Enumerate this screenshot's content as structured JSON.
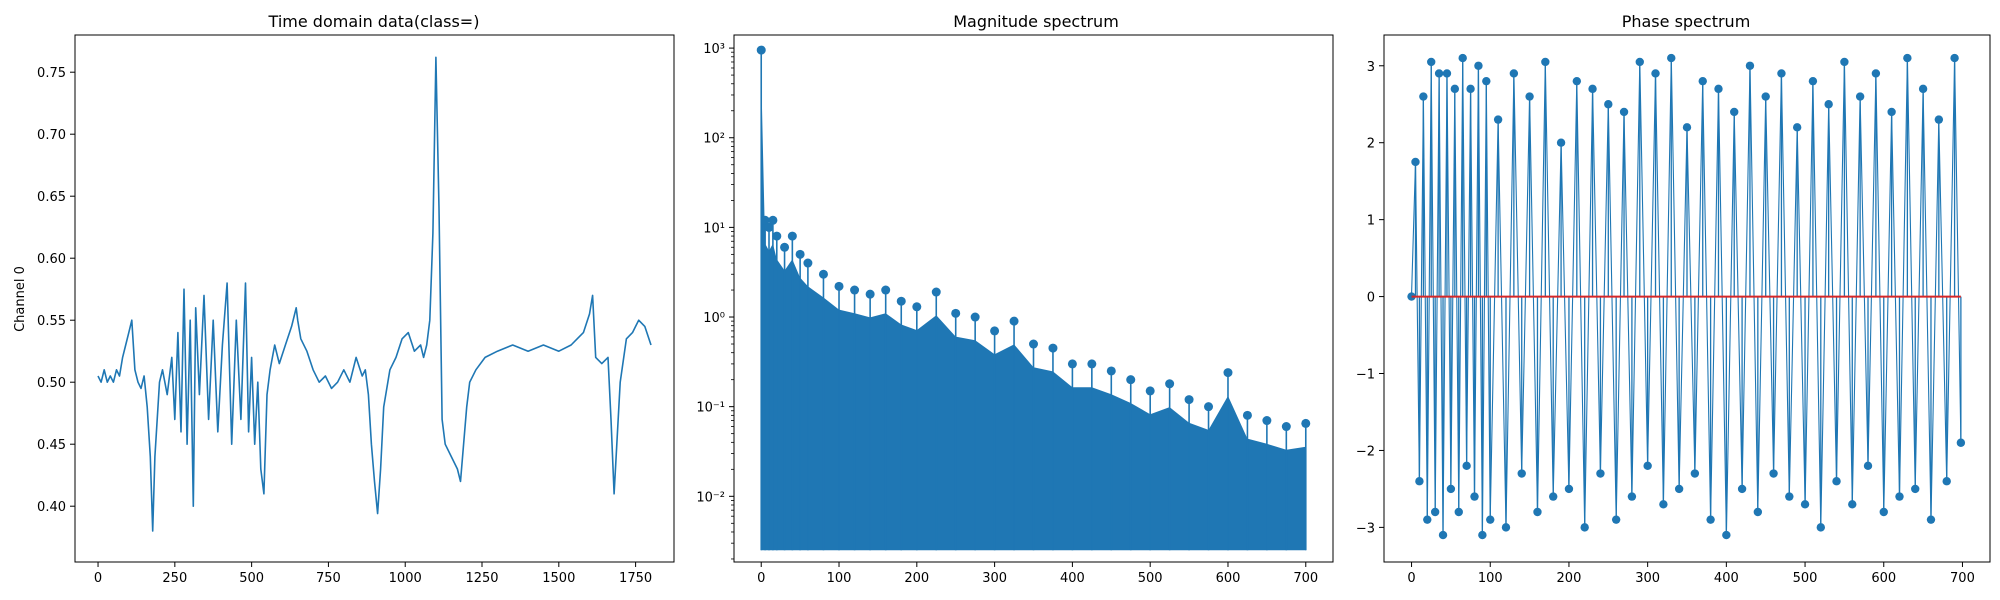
{
  "chart_data": [
    {
      "type": "line",
      "title": "Time domain data(class=)",
      "xlabel": "",
      "ylabel": "Channel 0",
      "xlim": [
        -75,
        1875
      ],
      "ylim": [
        0.355,
        0.78
      ],
      "x_ticks": [
        0,
        250,
        500,
        750,
        1000,
        1250,
        1500,
        1750
      ],
      "x_tick_labels": [
        "0",
        "250",
        "500",
        "750",
        "1000",
        "1250",
        "1500",
        "1750"
      ],
      "y_ticks": [
        0.4,
        0.45,
        0.5,
        0.55,
        0.6,
        0.65,
        0.7,
        0.75
      ],
      "y_tick_labels": [
        "0.40",
        "0.45",
        "0.50",
        "0.55",
        "0.60",
        "0.65",
        "0.70",
        "0.75"
      ],
      "grid": false,
      "color": "#1f77b4",
      "series": [
        {
          "x": [
            0,
            10,
            20,
            30,
            40,
            50,
            60,
            70,
            80,
            90,
            100,
            110,
            120,
            130,
            140,
            150,
            160,
            170,
            178,
            185,
            200,
            210,
            225,
            240,
            250,
            260,
            270,
            280,
            290,
            300,
            310,
            318,
            330,
            345,
            360,
            375,
            390,
            405,
            420,
            435,
            450,
            465,
            480,
            490,
            500,
            510,
            520,
            530,
            540,
            550,
            560,
            575,
            590,
            610,
            630,
            645,
            650,
            660,
            680,
            700,
            720,
            740,
            760,
            780,
            800,
            820,
            840,
            860,
            870,
            880,
            890,
            900,
            910,
            920,
            930,
            950,
            970,
            990,
            1010,
            1030,
            1050,
            1060,
            1070,
            1080,
            1090,
            1100,
            1110,
            1120,
            1130,
            1150,
            1170,
            1180,
            1190,
            1200,
            1210,
            1230,
            1260,
            1300,
            1350,
            1400,
            1450,
            1500,
            1540,
            1560,
            1580,
            1600,
            1610,
            1620,
            1640,
            1660,
            1670,
            1680,
            1700,
            1720,
            1740,
            1760,
            1780,
            1800
          ],
          "y": [
            0.505,
            0.5,
            0.51,
            0.5,
            0.505,
            0.5,
            0.51,
            0.505,
            0.52,
            0.53,
            0.54,
            0.55,
            0.51,
            0.5,
            0.495,
            0.505,
            0.48,
            0.44,
            0.38,
            0.44,
            0.5,
            0.51,
            0.49,
            0.52,
            0.47,
            0.54,
            0.46,
            0.575,
            0.45,
            0.55,
            0.4,
            0.56,
            0.49,
            0.57,
            0.47,
            0.55,
            0.46,
            0.53,
            0.58,
            0.45,
            0.55,
            0.47,
            0.58,
            0.46,
            0.52,
            0.45,
            0.5,
            0.43,
            0.41,
            0.49,
            0.51,
            0.53,
            0.515,
            0.53,
            0.545,
            0.56,
            0.55,
            0.535,
            0.525,
            0.51,
            0.5,
            0.505,
            0.495,
            0.5,
            0.51,
            0.5,
            0.52,
            0.505,
            0.51,
            0.49,
            0.45,
            0.42,
            0.394,
            0.43,
            0.48,
            0.51,
            0.52,
            0.535,
            0.54,
            0.525,
            0.53,
            0.52,
            0.53,
            0.55,
            0.62,
            0.762,
            0.64,
            0.47,
            0.45,
            0.44,
            0.43,
            0.42,
            0.45,
            0.48,
            0.5,
            0.51,
            0.52,
            0.525,
            0.53,
            0.525,
            0.53,
            0.525,
            0.53,
            0.535,
            0.54,
            0.555,
            0.57,
            0.52,
            0.515,
            0.52,
            0.47,
            0.41,
            0.5,
            0.535,
            0.54,
            0.55,
            0.545,
            0.53
          ]
        }
      ]
    },
    {
      "type": "stem",
      "title": "Magnitude spectrum",
      "xlabel": "",
      "ylabel": "",
      "yscale": "log",
      "xlim": [
        -35,
        735
      ],
      "ylim": [
        0.00185,
        1400
      ],
      "x_ticks": [
        0,
        100,
        200,
        300,
        400,
        500,
        600,
        700
      ],
      "x_tick_labels": [
        "0",
        "100",
        "200",
        "300",
        "400",
        "500",
        "600",
        "700"
      ],
      "y_ticks": [
        0.01,
        0.1,
        1,
        10,
        100,
        1000
      ],
      "y_tick_labels": [
        "10⁻²",
        "10⁻¹",
        "10⁰",
        "10¹",
        "10²",
        "10³"
      ],
      "grid": false,
      "color": "#1f77b4",
      "series": [
        {
          "x": [
            0,
            5,
            10,
            15,
            20,
            30,
            40,
            50,
            60,
            80,
            100,
            120,
            140,
            160,
            180,
            200,
            225,
            250,
            275,
            300,
            325,
            350,
            375,
            400,
            425,
            450,
            475,
            500,
            525,
            550,
            575,
            600,
            625,
            650,
            675,
            700
          ],
          "y": [
            950,
            12,
            10,
            12,
            8,
            6,
            8,
            5,
            4,
            3,
            2.2,
            2.0,
            1.8,
            2.0,
            1.5,
            1.3,
            1.9,
            1.1,
            1.0,
            0.7,
            0.9,
            0.5,
            0.45,
            0.3,
            0.3,
            0.25,
            0.2,
            0.15,
            0.18,
            0.12,
            0.1,
            0.24,
            0.08,
            0.07,
            0.06,
            0.065
          ]
        }
      ],
      "min_envelope": [
        0.0025,
        0.0025
      ]
    },
    {
      "type": "stem",
      "title": "Phase spectrum",
      "xlabel": "",
      "ylabel": "",
      "xlim": [
        -35,
        735
      ],
      "ylim": [
        -3.45,
        3.4
      ],
      "x_ticks": [
        0,
        100,
        200,
        300,
        400,
        500,
        600,
        700
      ],
      "x_tick_labels": [
        "0",
        "100",
        "200",
        "300",
        "400",
        "500",
        "600",
        "700"
      ],
      "y_ticks": [
        -3,
        -2,
        -1,
        0,
        1,
        2,
        3
      ],
      "y_tick_labels": [
        "−3",
        "−2",
        "−1",
        "0",
        "1",
        "2",
        "3"
      ],
      "grid": false,
      "color": "#1f77b4",
      "baseline_color": "#d62728",
      "series": [
        {
          "x": [
            0,
            5,
            10,
            15,
            20,
            25,
            30,
            35,
            40,
            45,
            50,
            55,
            60,
            65,
            70,
            75,
            80,
            85,
            90,
            95,
            100,
            110,
            120,
            130,
            140,
            150,
            160,
            170,
            180,
            190,
            200,
            210,
            220,
            230,
            240,
            250,
            260,
            270,
            280,
            290,
            300,
            310,
            320,
            330,
            340,
            350,
            360,
            370,
            380,
            390,
            400,
            410,
            420,
            430,
            440,
            450,
            460,
            470,
            480,
            490,
            500,
            510,
            520,
            530,
            540,
            550,
            560,
            570,
            580,
            590,
            600,
            610,
            620,
            630,
            640,
            650,
            660,
            670,
            680,
            690,
            698
          ],
          "y": [
            0.0,
            1.75,
            -2.4,
            2.6,
            -2.9,
            3.05,
            -2.8,
            2.9,
            -3.1,
            2.9,
            -2.5,
            2.7,
            -2.8,
            3.1,
            -2.2,
            2.7,
            -2.6,
            3.0,
            -3.1,
            2.8,
            -2.9,
            2.3,
            -3.0,
            2.9,
            -2.3,
            2.6,
            -2.8,
            3.05,
            -2.6,
            2.0,
            -2.5,
            2.8,
            -3.0,
            2.7,
            -2.3,
            2.5,
            -2.9,
            2.4,
            -2.6,
            3.05,
            -2.2,
            2.9,
            -2.7,
            3.1,
            -2.5,
            2.2,
            -2.3,
            2.8,
            -2.9,
            2.7,
            -3.1,
            2.4,
            -2.5,
            3.0,
            -2.8,
            2.6,
            -2.3,
            2.9,
            -2.6,
            2.2,
            -2.7,
            2.8,
            -3.0,
            2.5,
            -2.4,
            3.05,
            -2.7,
            2.6,
            -2.2,
            2.9,
            -2.8,
            2.4,
            -2.6,
            3.1,
            -2.5,
            2.7,
            -2.9,
            2.3,
            -2.4,
            3.1,
            -1.9
          ]
        }
      ]
    }
  ]
}
